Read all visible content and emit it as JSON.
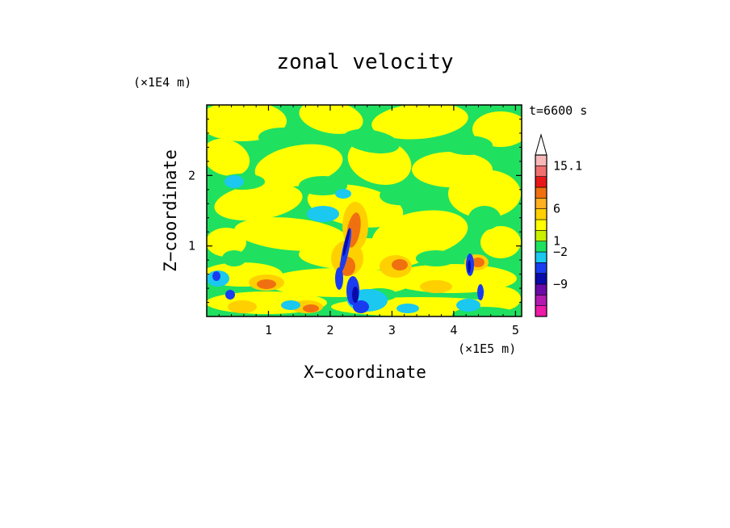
{
  "chart_data": {
    "type": "heatmap",
    "title": "zonal velocity",
    "xlabel": "X−coordinate",
    "ylabel": "Z−coordinate",
    "x_unit": "(×1E5 m)",
    "y_unit": "(×1E4 m)",
    "time_label": "t=6600 s",
    "x_ticks": [
      "1",
      "2",
      "3",
      "4",
      "5"
    ],
    "y_ticks": [
      "1",
      "2"
    ],
    "xlim": [
      0,
      5.1
    ],
    "ylim": [
      0,
      3
    ],
    "colorbar": {
      "labels": [
        "15.1",
        "6",
        "1",
        "−2",
        "−9"
      ],
      "colors": [
        "#ee1aa8",
        "#b21ab0",
        "#6a0aa8",
        "#0a0aaa",
        "#1a3cf0",
        "#1ac8f0",
        "#20e060",
        "#c8f000",
        "#ffff00",
        "#ffd000",
        "#ffb020",
        "#f07010",
        "#e81818",
        "#f07070",
        "#f8b8b8"
      ]
    },
    "field_colors": {
      "green": "#20e060",
      "yellow": "#ffff00",
      "cyan": "#1ac8f0",
      "blue": "#1a3cf0",
      "darkblue": "#0a0aaa",
      "orange": "#ffb020",
      "deeporange": "#f07010",
      "gold": "#ffd000"
    }
  }
}
